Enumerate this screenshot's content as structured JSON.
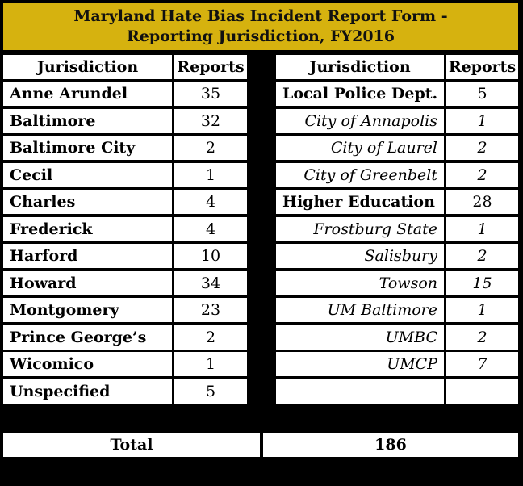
{
  "title": {
    "line1": "Maryland Hate Bias Incident Report Form -",
    "line2": "Reporting Jurisdiction, FY2016"
  },
  "headers": {
    "left_jurisdiction": "Jurisdiction",
    "left_reports": "Reports",
    "right_jurisdiction": "Jurisdiction",
    "right_reports": "Reports"
  },
  "left_rows": [
    {
      "name": "Anne Arundel",
      "reports": "35"
    },
    {
      "name": "Baltimore",
      "reports": "32"
    },
    {
      "name": "Baltimore City",
      "reports": "2"
    },
    {
      "name": "Cecil",
      "reports": "1"
    },
    {
      "name": "Charles",
      "reports": "4"
    },
    {
      "name": "Frederick",
      "reports": "4"
    },
    {
      "name": "Harford",
      "reports": "10"
    },
    {
      "name": "Howard",
      "reports": "34"
    },
    {
      "name": "Montgomery",
      "reports": "23"
    },
    {
      "name": "Prince George’s",
      "reports": "2"
    },
    {
      "name": "Wicomico",
      "reports": "1"
    },
    {
      "name": "Unspecified",
      "reports": "5"
    }
  ],
  "right_rows": [
    {
      "name": "Local Police Dept.",
      "reports": "5",
      "style": "group"
    },
    {
      "name": "City of Annapolis",
      "reports": "1",
      "style": "sub"
    },
    {
      "name": "City of Laurel",
      "reports": "2",
      "style": "sub"
    },
    {
      "name": "City of Greenbelt",
      "reports": "2",
      "style": "sub"
    },
    {
      "name": "Higher Education",
      "reports": "28",
      "style": "group"
    },
    {
      "name": "Frostburg State",
      "reports": "1",
      "style": "sub"
    },
    {
      "name": "Salisbury",
      "reports": "2",
      "style": "sub"
    },
    {
      "name": "Towson",
      "reports": "15",
      "style": "sub"
    },
    {
      "name": "UM Baltimore",
      "reports": "1",
      "style": "sub"
    },
    {
      "name": "UMBC",
      "reports": "2",
      "style": "sub"
    },
    {
      "name": "UMCP",
      "reports": "7",
      "style": "sub"
    },
    {
      "name": "",
      "reports": "",
      "style": "empty"
    }
  ],
  "total": {
    "label": "Total",
    "value": "186"
  }
}
